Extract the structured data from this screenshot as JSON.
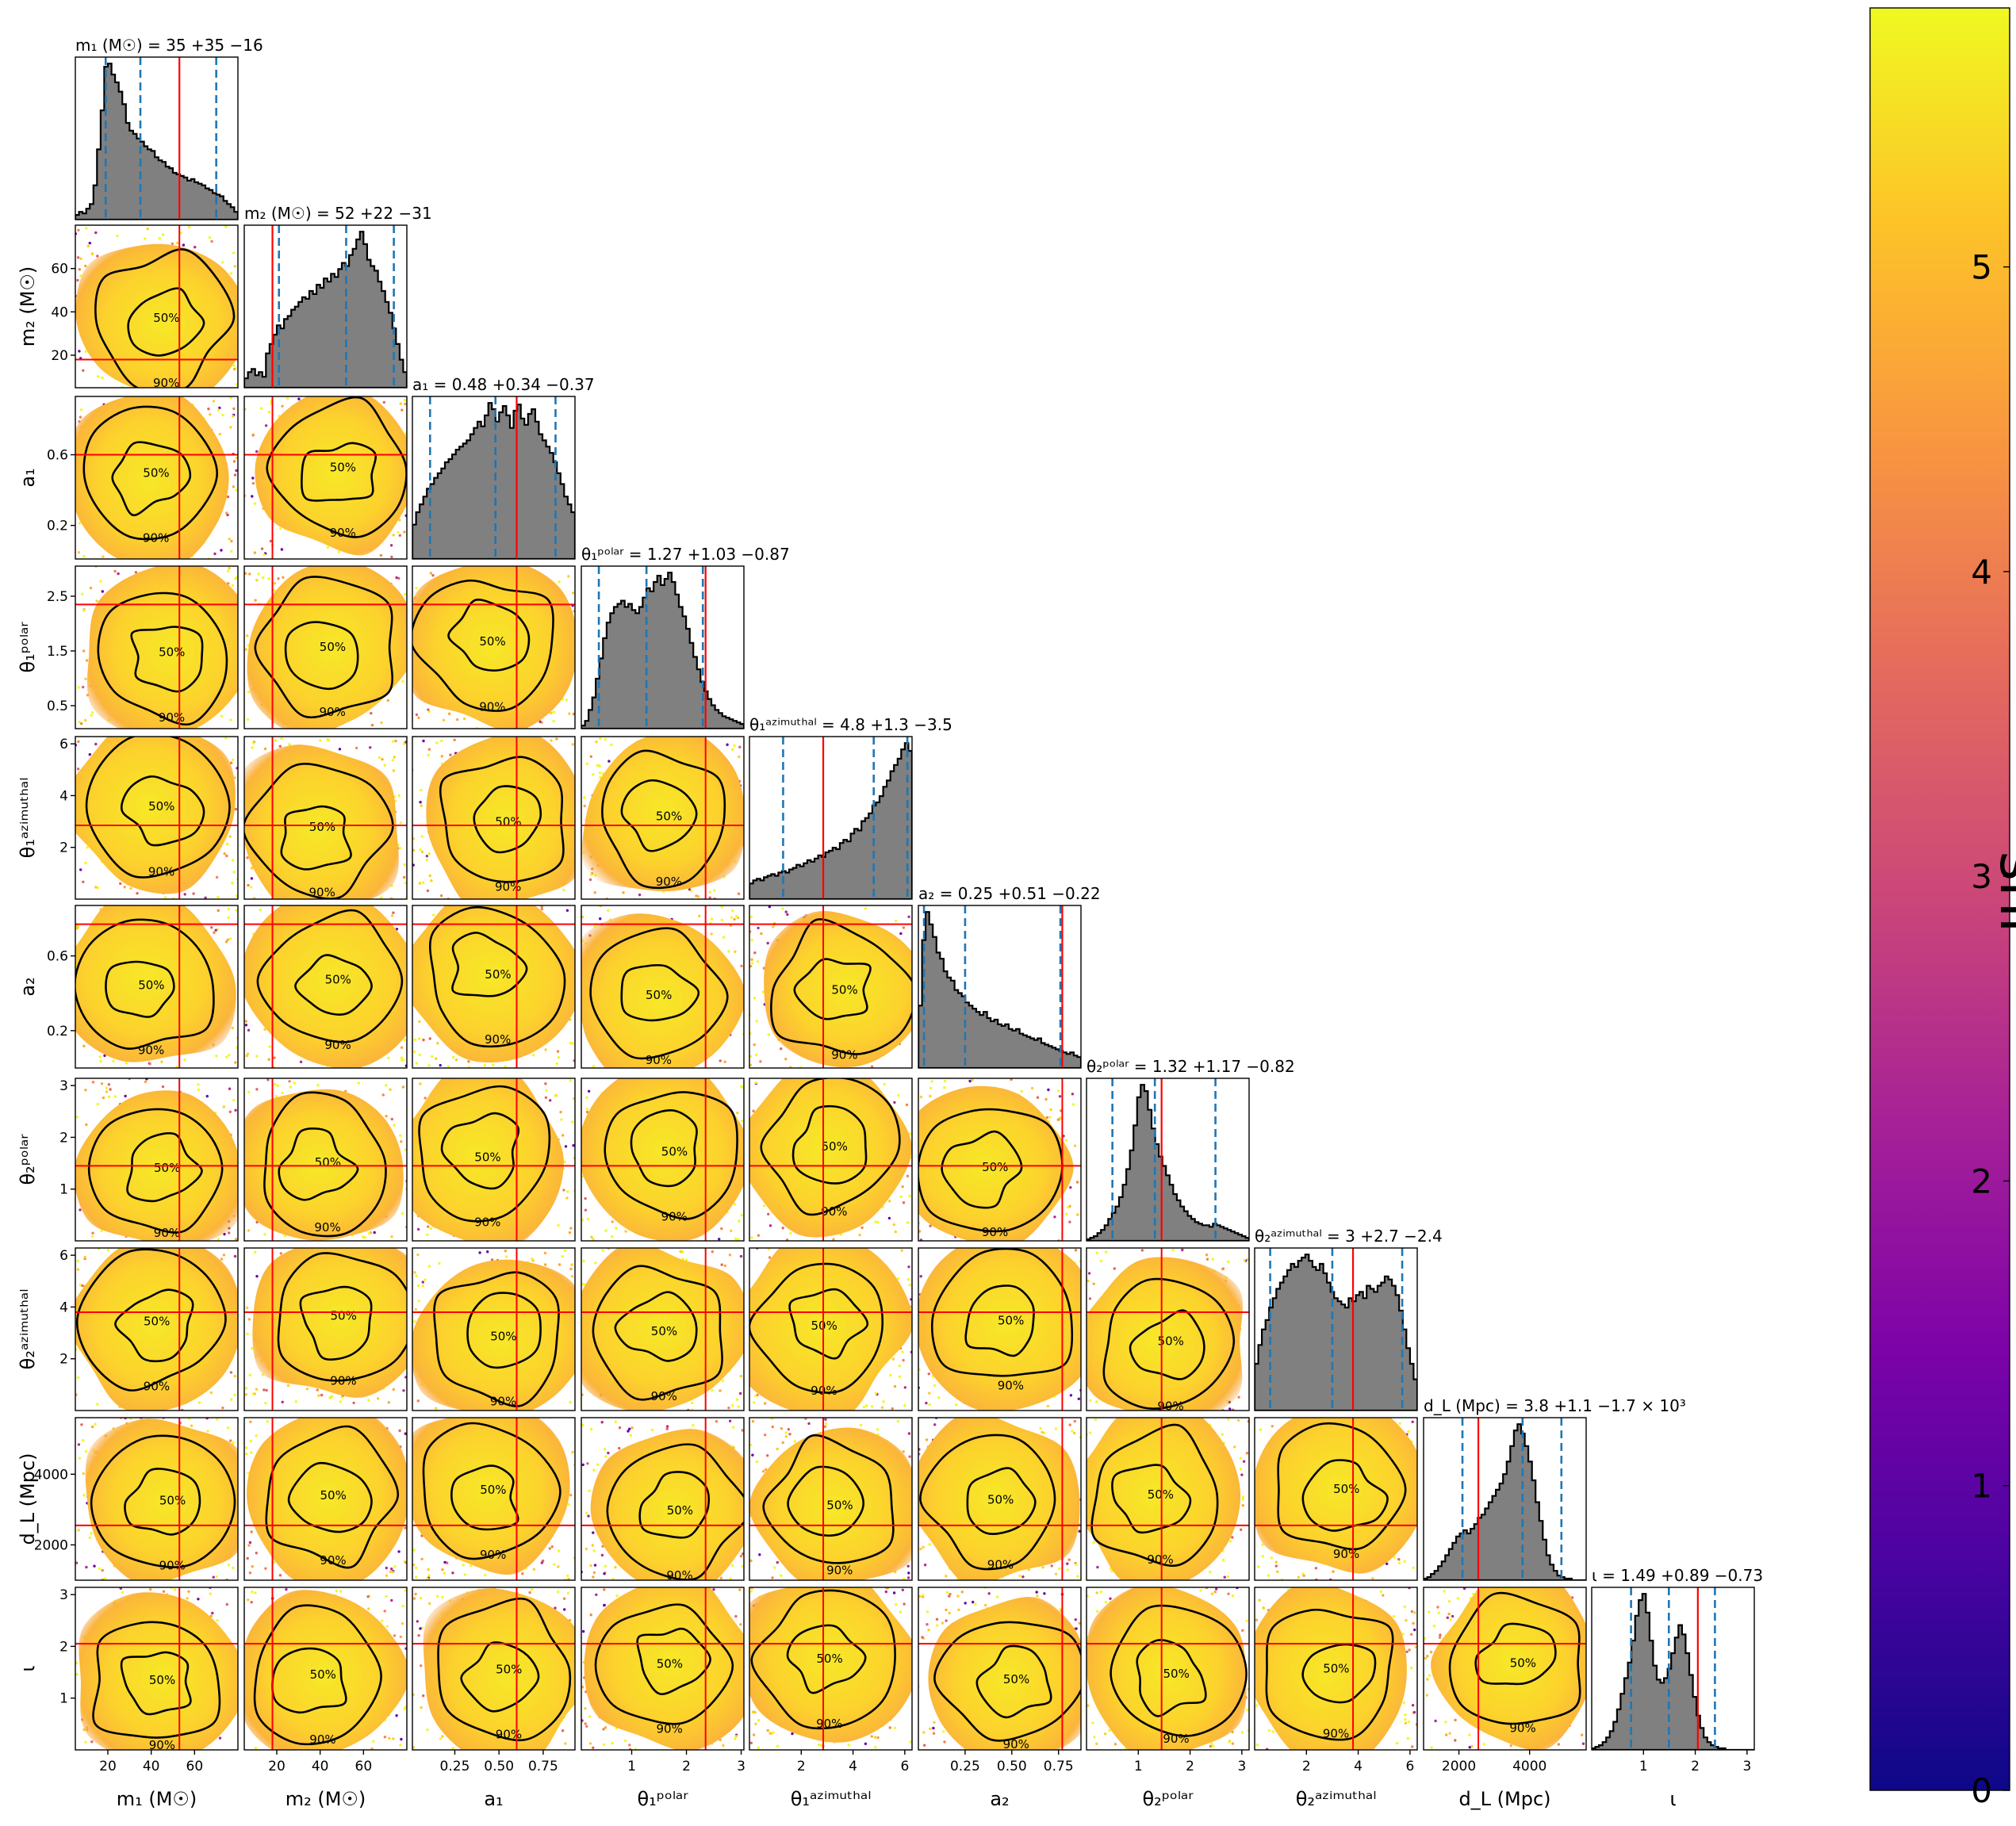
{
  "colorbar": {
    "label": "snr",
    "ticks": [
      "0",
      "1",
      "2",
      "3",
      "4",
      "5"
    ],
    "range": [
      0,
      5.85
    ],
    "colormap": "plasma",
    "colors": [
      "#0d0887",
      "#6a00a8",
      "#b12a90",
      "#e16462",
      "#fca636",
      "#f0f921"
    ]
  },
  "chart_data": {
    "type": "corner",
    "parameters": [
      {
        "id": "m1",
        "axis_label": "m₁ (M☉)",
        "title": "m₁ (M☉) = 35 +35 −16",
        "range": [
          5,
          80
        ],
        "ticks": [
          20,
          40,
          60
        ],
        "tick_labels": [
          "20",
          "40",
          "60"
        ],
        "median": 35,
        "lower": 19,
        "upper": 70,
        "truth": 53,
        "histogram": [
          0.03,
          0.05,
          0.04,
          0.07,
          0.1,
          0.22,
          0.45,
          0.7,
          0.98,
          1.0,
          0.93,
          0.88,
          0.82,
          0.74,
          0.62,
          0.57,
          0.55,
          0.52,
          0.5,
          0.47,
          0.45,
          0.44,
          0.4,
          0.38,
          0.37,
          0.34,
          0.33,
          0.3,
          0.29,
          0.28,
          0.27,
          0.25,
          0.26,
          0.24,
          0.23,
          0.22,
          0.2,
          0.19,
          0.17,
          0.16,
          0.15,
          0.12,
          0.1,
          0.08,
          0.05
        ]
      },
      {
        "id": "m2",
        "axis_label": "m₂ (M☉)",
        "title": "m₂ (M☉) = 52 +22 −31",
        "range": [
          5,
          80
        ],
        "ticks": [
          20,
          40,
          60
        ],
        "tick_labels": [
          "20",
          "40",
          "60"
        ],
        "median": 52,
        "lower": 21,
        "upper": 74,
        "truth": 18,
        "histogram": [
          0.06,
          0.1,
          0.12,
          0.08,
          0.1,
          0.07,
          0.22,
          0.28,
          0.34,
          0.4,
          0.38,
          0.44,
          0.46,
          0.5,
          0.52,
          0.55,
          0.58,
          0.57,
          0.62,
          0.6,
          0.66,
          0.64,
          0.7,
          0.68,
          0.73,
          0.71,
          0.76,
          0.8,
          0.78,
          0.85,
          0.89,
          0.95,
          1.0,
          0.92,
          0.82,
          0.78,
          0.75,
          0.68,
          0.62,
          0.55,
          0.48,
          0.38,
          0.28,
          0.18,
          0.1
        ]
      },
      {
        "id": "a1",
        "axis_label": "a₁",
        "title": "a₁ = 0.48 +0.34 −0.37",
        "range": [
          0.01,
          0.93
        ],
        "ticks": [
          0.25,
          0.5,
          0.75
        ],
        "tick_labels": [
          "0.25",
          "0.50",
          "0.75"
        ],
        "y_ticks": [
          0.2,
          0.6
        ],
        "y_tick_labels": [
          "0.2",
          "0.6"
        ],
        "median": 0.48,
        "lower": 0.11,
        "upper": 0.82,
        "truth": 0.6,
        "histogram": [
          0.22,
          0.3,
          0.35,
          0.4,
          0.45,
          0.48,
          0.52,
          0.55,
          0.58,
          0.62,
          0.64,
          0.67,
          0.7,
          0.72,
          0.74,
          0.76,
          0.8,
          0.84,
          0.88,
          0.85,
          0.92,
          1.0,
          0.96,
          0.88,
          0.94,
          0.98,
          0.92,
          0.84,
          0.95,
          0.99,
          0.9,
          0.86,
          0.93,
          0.96,
          0.88,
          0.8,
          0.76,
          0.72,
          0.68,
          0.62,
          0.55,
          0.48,
          0.4,
          0.35,
          0.3
        ]
      },
      {
        "id": "theta1p",
        "axis_label": "θ₁ᵖᵒˡᵃʳ",
        "title": "θ₁ᵖᵒˡᵃʳ = 1.27 +1.03 −0.87",
        "range": [
          0.08,
          3.05
        ],
        "ticks": [
          1,
          2,
          3
        ],
        "tick_labels": [
          "1",
          "2",
          "3"
        ],
        "y_ticks": [
          0.5,
          1.5,
          2.5
        ],
        "y_tick_labels": [
          "0.5",
          "1.5",
          "2.5"
        ],
        "median": 1.27,
        "lower": 0.4,
        "upper": 2.3,
        "truth": 2.35,
        "histogram": [
          0.02,
          0.05,
          0.12,
          0.2,
          0.32,
          0.45,
          0.58,
          0.68,
          0.74,
          0.78,
          0.8,
          0.82,
          0.78,
          0.8,
          0.76,
          0.74,
          0.78,
          0.84,
          0.9,
          0.88,
          0.94,
          0.98,
          0.92,
          0.96,
          1.0,
          0.94,
          0.86,
          0.78,
          0.72,
          0.64,
          0.55,
          0.46,
          0.38,
          0.3,
          0.24,
          0.19,
          0.15,
          0.12,
          0.1,
          0.08,
          0.07,
          0.06,
          0.05,
          0.04,
          0.03
        ]
      },
      {
        "id": "theta1a",
        "axis_label": "θ₁ᵃᶻⁱᵐᵘᵗʰᵃˡ",
        "title": "θ₁ᵃᶻⁱᵐᵘᵗʰᵃˡ = 4.8 +1.3 −3.5",
        "range": [
          0,
          6.28
        ],
        "ticks": [
          2,
          4,
          6
        ],
        "tick_labels": [
          "2",
          "4",
          "6"
        ],
        "median": 4.8,
        "lower": 1.3,
        "upper": 6.1,
        "truth": 2.85,
        "histogram": [
          0.1,
          0.12,
          0.13,
          0.12,
          0.14,
          0.15,
          0.16,
          0.15,
          0.17,
          0.18,
          0.17,
          0.19,
          0.2,
          0.22,
          0.21,
          0.23,
          0.25,
          0.24,
          0.26,
          0.28,
          0.27,
          0.3,
          0.31,
          0.33,
          0.32,
          0.36,
          0.38,
          0.37,
          0.42,
          0.45,
          0.44,
          0.5,
          0.52,
          0.55,
          0.6,
          0.62,
          0.66,
          0.72,
          0.76,
          0.82,
          0.86,
          0.9,
          0.96,
          1.0,
          0.95
        ]
      },
      {
        "id": "a2",
        "axis_label": "a₂",
        "title": "a₂ = 0.25 +0.51 −0.22",
        "range": [
          0.0,
          0.87
        ],
        "ticks": [
          0.25,
          0.5,
          0.75
        ],
        "tick_labels": [
          "0.25",
          "0.50",
          "0.75"
        ],
        "y_ticks": [
          0.2,
          0.6
        ],
        "y_tick_labels": [
          "0.2",
          "0.6"
        ],
        "median": 0.25,
        "lower": 0.03,
        "upper": 0.76,
        "truth": 0.77,
        "histogram": [
          0.4,
          0.82,
          1.0,
          0.92,
          0.84,
          0.74,
          0.7,
          0.62,
          0.58,
          0.56,
          0.5,
          0.48,
          0.46,
          0.42,
          0.4,
          0.38,
          0.36,
          0.34,
          0.36,
          0.32,
          0.3,
          0.31,
          0.28,
          0.27,
          0.28,
          0.25,
          0.24,
          0.25,
          0.22,
          0.21,
          0.2,
          0.19,
          0.18,
          0.19,
          0.16,
          0.15,
          0.14,
          0.13,
          0.12,
          0.11,
          0.1,
          0.09,
          0.1,
          0.08,
          0.07
        ]
      },
      {
        "id": "theta2p",
        "axis_label": "θ₂ᵖᵒˡᵃʳ",
        "title": "θ₂ᵖᵒˡᵃʳ = 1.32 +1.17 −0.82",
        "range": [
          0.0,
          3.14
        ],
        "ticks": [
          1,
          2,
          3
        ],
        "tick_labels": [
          "1",
          "2",
          "3"
        ],
        "y_ticks": [
          1,
          2,
          3
        ],
        "y_tick_labels": [
          "1",
          "2",
          "3"
        ],
        "median": 1.32,
        "lower": 0.5,
        "upper": 2.49,
        "truth": 1.45,
        "histogram": [
          0.01,
          0.02,
          0.03,
          0.05,
          0.07,
          0.1,
          0.14,
          0.18,
          0.22,
          0.28,
          0.36,
          0.46,
          0.58,
          0.74,
          0.92,
          1.0,
          0.96,
          0.84,
          0.72,
          0.62,
          0.54,
          0.48,
          0.42,
          0.36,
          0.3,
          0.26,
          0.22,
          0.19,
          0.16,
          0.14,
          0.12,
          0.11,
          0.1,
          0.1,
          0.09,
          0.11,
          0.1,
          0.09,
          0.08,
          0.07,
          0.06,
          0.05,
          0.04,
          0.03,
          0.02
        ]
      },
      {
        "id": "theta2a",
        "axis_label": "θ₂ᵃᶻⁱᵐᵘᵗʰᵃˡ",
        "title": "θ₂ᵃᶻⁱᵐᵘᵗʰᵃˡ = 3 +2.7 −2.4",
        "range": [
          0,
          6.28
        ],
        "ticks": [
          2,
          4,
          6
        ],
        "tick_labels": [
          "2",
          "4",
          "6"
        ],
        "median": 3.0,
        "lower": 0.6,
        "upper": 5.7,
        "truth": 3.8,
        "histogram": [
          0.3,
          0.42,
          0.52,
          0.58,
          0.66,
          0.72,
          0.78,
          0.82,
          0.86,
          0.9,
          0.94,
          0.92,
          0.96,
          0.98,
          1.0,
          0.96,
          0.92,
          0.9,
          0.94,
          0.88,
          0.82,
          0.76,
          0.72,
          0.7,
          0.68,
          0.66,
          0.72,
          0.7,
          0.74,
          0.76,
          0.72,
          0.8,
          0.78,
          0.76,
          0.8,
          0.82,
          0.86,
          0.84,
          0.8,
          0.74,
          0.64,
          0.52,
          0.4,
          0.3,
          0.2
        ]
      },
      {
        "id": "dL",
        "axis_label": "d_L (Mpc)",
        "title": "d_L (Mpc) = 3.8 +1.1 −1.7 × 10³",
        "range": [
          1000,
          5600
        ],
        "ticks": [
          2000,
          4000
        ],
        "tick_labels": [
          "2000",
          "4000"
        ],
        "median": 3800,
        "lower": 2100,
        "upper": 4900,
        "truth": 2550,
        "histogram": [
          0.01,
          0.02,
          0.04,
          0.06,
          0.09,
          0.12,
          0.16,
          0.2,
          0.24,
          0.28,
          0.3,
          0.32,
          0.3,
          0.33,
          0.36,
          0.4,
          0.42,
          0.46,
          0.5,
          0.54,
          0.58,
          0.62,
          0.68,
          0.76,
          0.86,
          0.96,
          1.0,
          0.94,
          0.86,
          0.76,
          0.64,
          0.5,
          0.38,
          0.26,
          0.16,
          0.1,
          0.06,
          0.03,
          0.02,
          0.01,
          0.01,
          0.0,
          0.0,
          0.0,
          0.0
        ]
      },
      {
        "id": "iota",
        "axis_label": "ι",
        "title": "ι = 1.49 +0.89 −0.73",
        "range": [
          0.0,
          3.14
        ],
        "ticks": [
          1,
          2,
          3
        ],
        "tick_labels": [
          "1",
          "2",
          "3"
        ],
        "y_ticks": [
          1,
          2,
          3
        ],
        "y_tick_labels": [
          "1",
          "2",
          "3"
        ],
        "median": 1.49,
        "lower": 0.76,
        "upper": 2.38,
        "truth": 2.05,
        "histogram": [
          0.01,
          0.02,
          0.03,
          0.05,
          0.08,
          0.12,
          0.18,
          0.26,
          0.36,
          0.46,
          0.56,
          0.7,
          0.86,
          0.96,
          1.0,
          0.88,
          0.7,
          0.54,
          0.45,
          0.43,
          0.46,
          0.52,
          0.62,
          0.72,
          0.8,
          0.74,
          0.62,
          0.48,
          0.34,
          0.22,
          0.14,
          0.08,
          0.05,
          0.03,
          0.02,
          0.01,
          0.01,
          0.0,
          0.0,
          0.0,
          0.0,
          0.0,
          0.0,
          0.0,
          0.0
        ]
      }
    ],
    "contour_levels": [
      "50%",
      "90%"
    ],
    "colors": {
      "histogram_fill": "#808080",
      "histogram_edge": "#000000",
      "quantile_lines": "#1f77b4",
      "truth_lines": "#ff0000",
      "contours": "#000000"
    }
  }
}
